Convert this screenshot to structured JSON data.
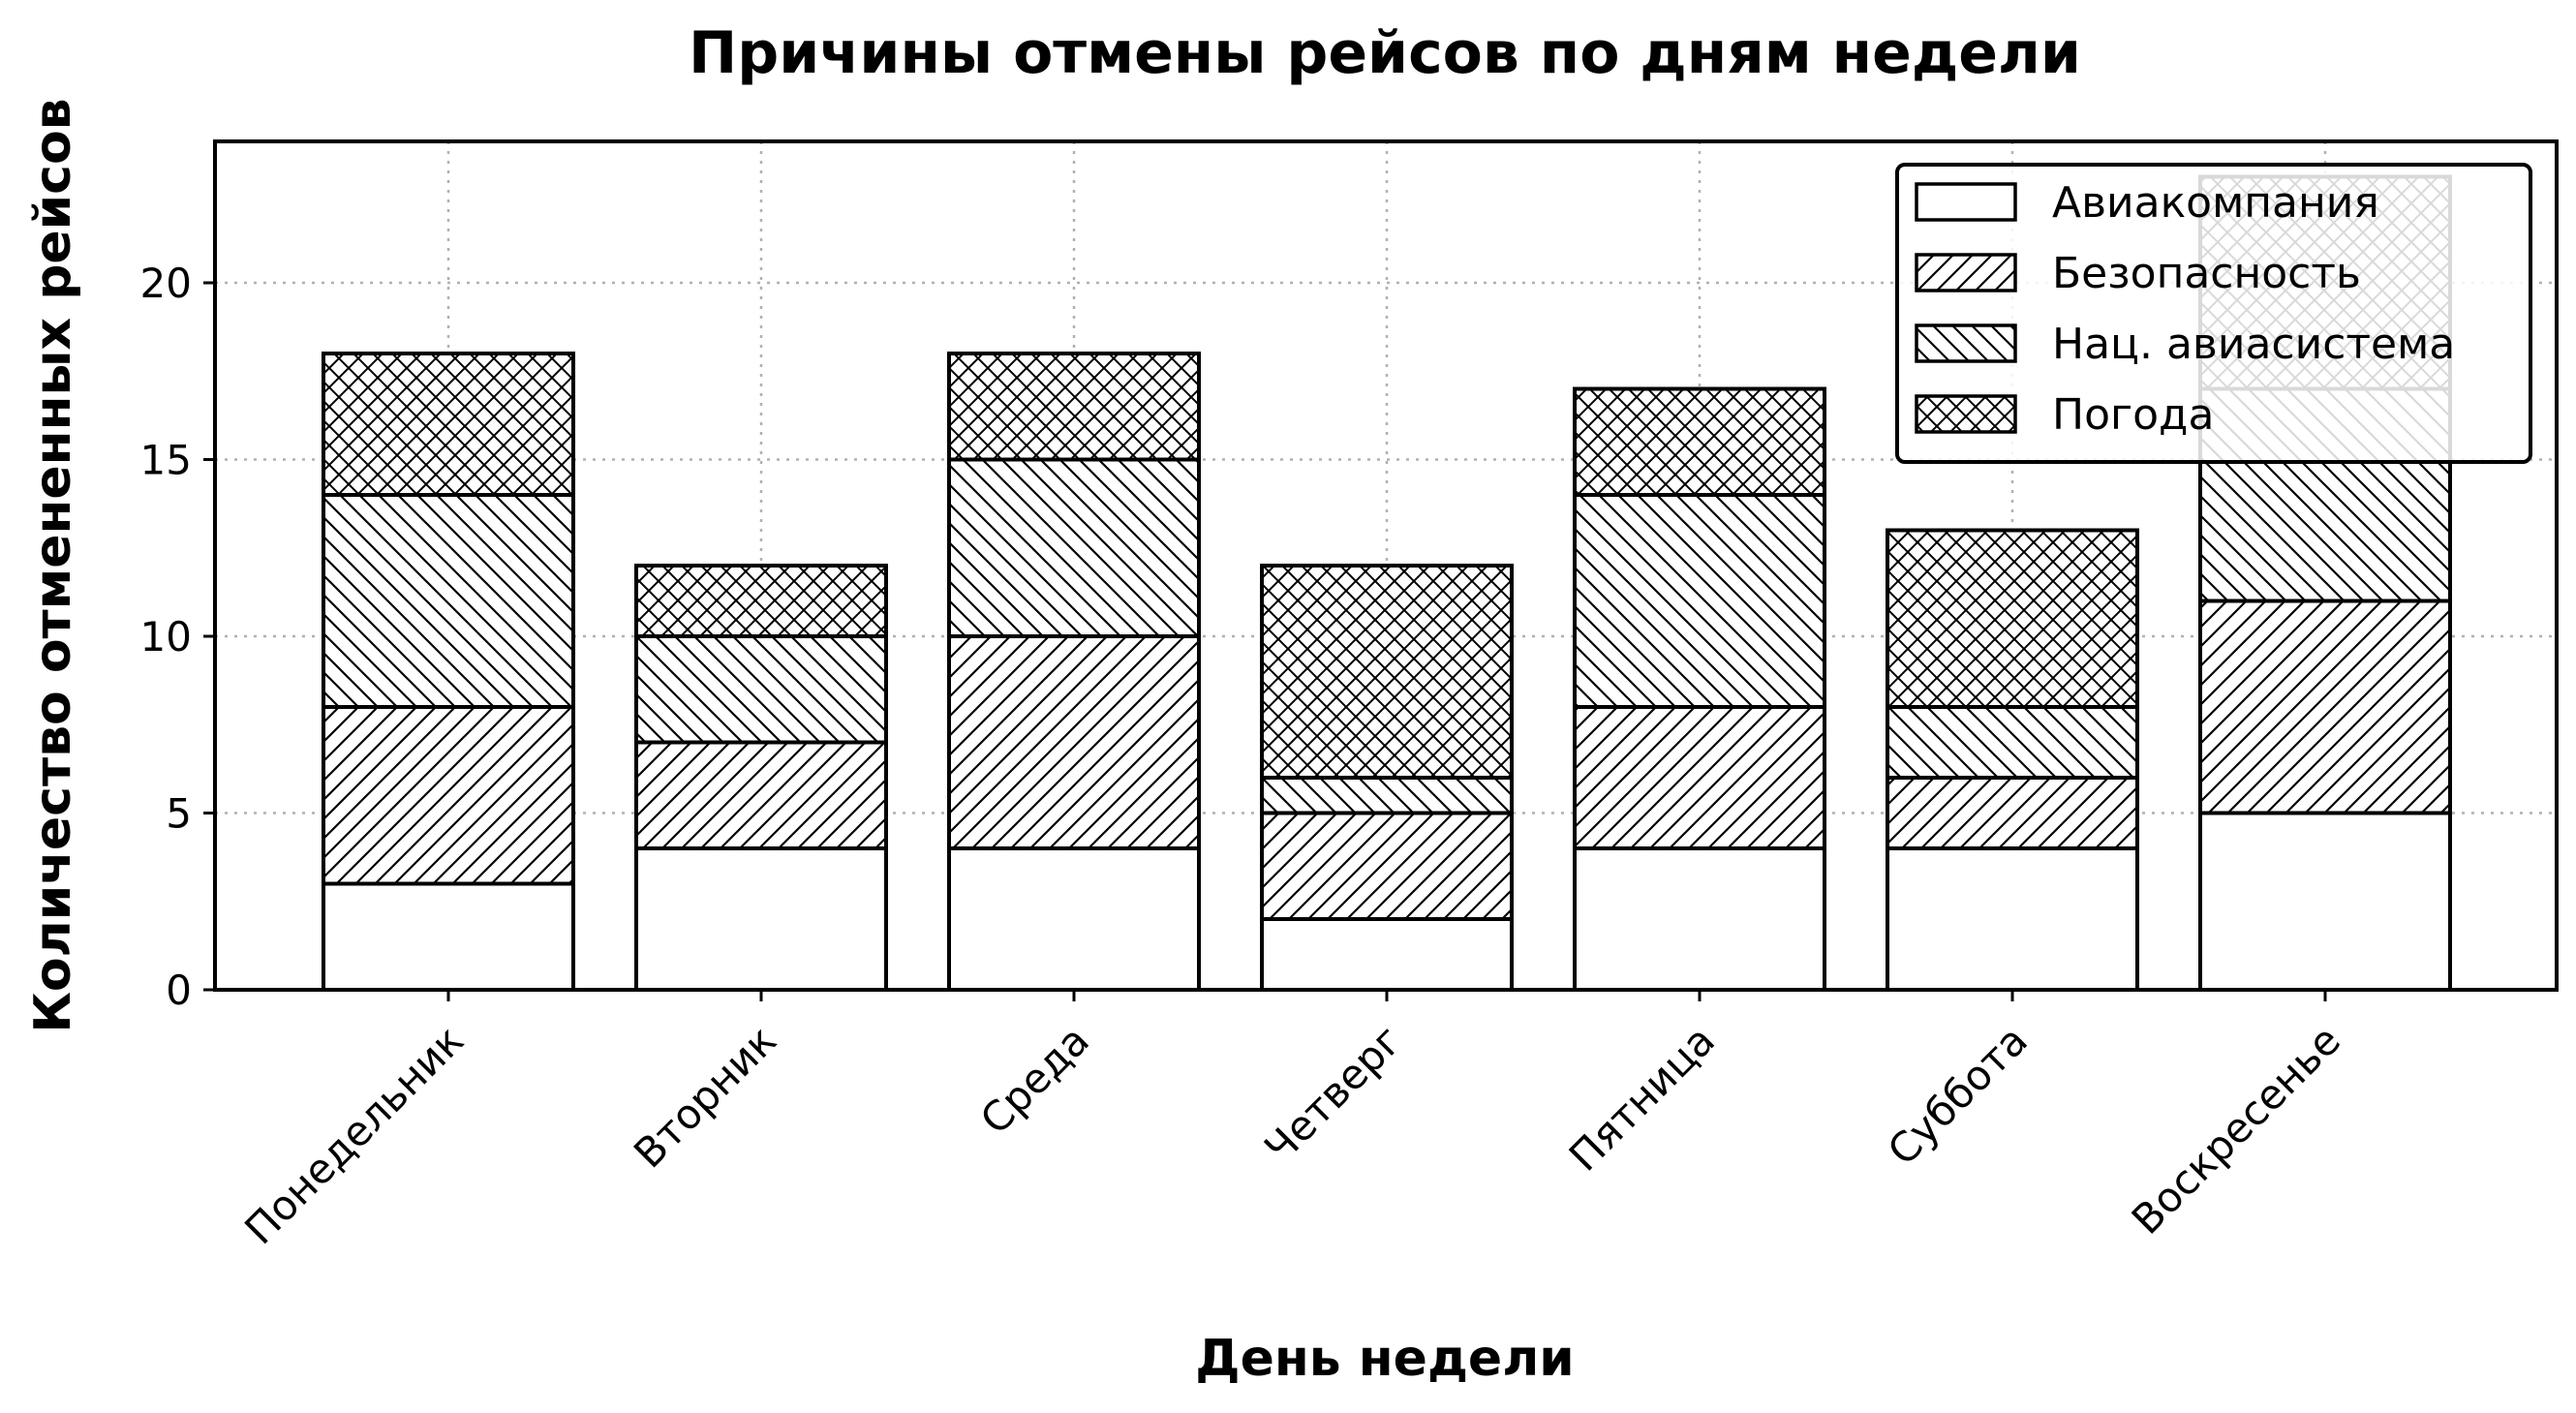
{
  "chart_data": {
    "type": "bar",
    "stacked": true,
    "title": "Причины отмены рейсов по дням недели",
    "xlabel": "День недели",
    "ylabel": "Количество отмененных рейсов",
    "categories": [
      "Понедельник",
      "Вторник",
      "Среда",
      "Четверг",
      "Пятница",
      "Суббота",
      "Воскресенье"
    ],
    "series": [
      {
        "name": "Авиакомпания",
        "hatch": "none",
        "values": [
          3,
          4,
          4,
          2,
          4,
          4,
          5
        ]
      },
      {
        "name": "Безопасность",
        "hatch": "diagonal-up",
        "values": [
          5,
          3,
          6,
          3,
          4,
          2,
          6
        ]
      },
      {
        "name": "Нац. авиасистема",
        "hatch": "diagonal-down",
        "values": [
          6,
          3,
          5,
          1,
          6,
          2,
          6
        ]
      },
      {
        "name": "Погода",
        "hatch": "crosshatch",
        "values": [
          4,
          2,
          3,
          6,
          3,
          5,
          6
        ]
      }
    ],
    "ylim": [
      0,
      24
    ],
    "yticks": [
      0,
      5,
      10,
      15,
      20
    ],
    "grid": true,
    "legend_position": "top-right",
    "colors": {
      "fill": "#ffffff",
      "stroke": "#000000",
      "grid": "#b0b0b0"
    }
  }
}
